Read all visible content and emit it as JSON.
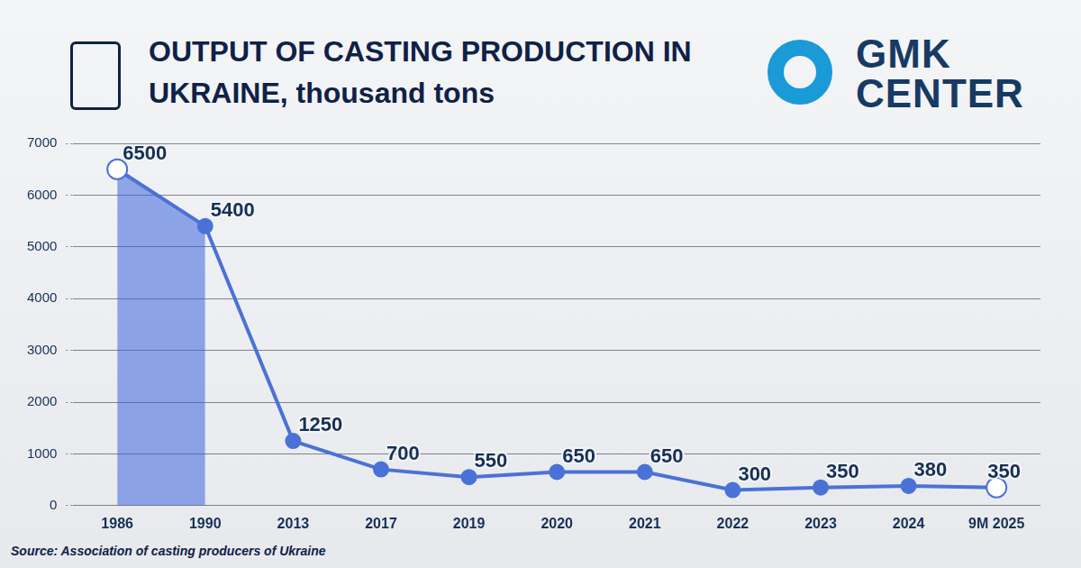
{
  "chart_data": {
    "type": "line",
    "title": "OUTPUT OF CASTING PRODUCTION IN UKRAINE, thousand tons",
    "brand": "GMK CENTER",
    "source": "Source: Association of casting producers of Ukraine",
    "categories": [
      "1986",
      "1990",
      "2013",
      "2017",
      "2019",
      "2020",
      "2021",
      "2022",
      "2023",
      "2024",
      "9M 2025"
    ],
    "values": [
      6500,
      5400,
      1250,
      700,
      550,
      650,
      650,
      300,
      350,
      380,
      350
    ],
    "color": "#4a72d6",
    "ylim": [
      0,
      7000
    ],
    "yticks": [
      0,
      1000,
      2000,
      3000,
      4000,
      5000,
      6000,
      7000
    ],
    "grid": true,
    "data_labels": true,
    "marker": "circle"
  }
}
